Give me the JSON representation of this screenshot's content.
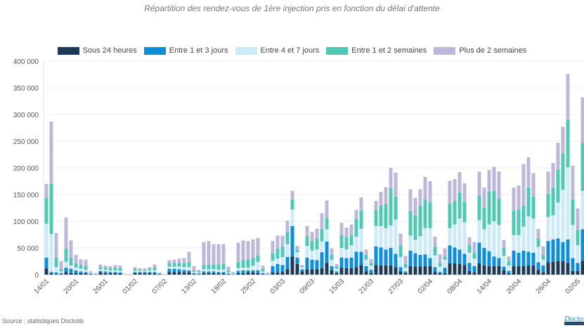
{
  "title": "Répartition des rendez-vous de 1ère injection pris en fonction du délai d'attente",
  "source": "Source : statistiques Doctolib",
  "logo_text": "Doctolib",
  "chart_data": {
    "type": "bar",
    "stacked": true,
    "title": "Répartition des rendez-vous de 1ère injection pris en fonction du délai d'attente",
    "xlabel": "",
    "ylabel": "",
    "ylim": [
      0,
      400000
    ],
    "y_ticks": [
      0,
      50000,
      100000,
      150000,
      200000,
      250000,
      300000,
      350000,
      400000
    ],
    "y_tick_labels": [
      "0",
      "50 000",
      "100 000",
      "150 000",
      "200 000",
      "250 000",
      "300 000",
      "350 000",
      "400 000"
    ],
    "x_tick_labels": [
      "14/01",
      "20/01",
      "26/01",
      "01/02",
      "07/02",
      "13/02",
      "19/02",
      "25/02",
      "03/03",
      "09/03",
      "15/03",
      "21/03",
      "27/03",
      "02/04",
      "08/04",
      "14/04",
      "20/04",
      "26/04",
      "02/05"
    ],
    "grid": true,
    "legend_position": "top",
    "categories": [
      "14/01",
      "15/01",
      "16/01",
      "17/01",
      "18/01",
      "19/01",
      "20/01",
      "21/01",
      "22/01",
      "23/01",
      "24/01",
      "25/01",
      "26/01",
      "27/01",
      "28/01",
      "29/01",
      "30/01",
      "31/01",
      "01/02",
      "02/02",
      "03/02",
      "04/02",
      "05/02",
      "06/02",
      "07/02",
      "08/02",
      "09/02",
      "10/02",
      "11/02",
      "12/02",
      "13/02",
      "14/02",
      "15/02",
      "16/02",
      "17/02",
      "18/02",
      "19/02",
      "20/02",
      "21/02",
      "22/02",
      "23/02",
      "24/02",
      "25/02",
      "26/02",
      "27/02",
      "28/02",
      "01/03",
      "02/03",
      "03/03",
      "04/03",
      "05/03",
      "06/03",
      "07/03",
      "08/03",
      "09/03",
      "10/03",
      "11/03",
      "12/03",
      "13/03",
      "14/03",
      "15/03",
      "16/03",
      "17/03",
      "18/03",
      "19/03",
      "20/03",
      "21/03",
      "22/03",
      "23/03",
      "24/03",
      "25/03",
      "26/03",
      "27/03",
      "28/03",
      "29/03",
      "30/03",
      "31/03",
      "01/04",
      "02/04",
      "03/04",
      "04/04",
      "05/04",
      "06/04",
      "07/04",
      "08/04",
      "09/04",
      "10/04",
      "11/04",
      "12/04",
      "13/04",
      "14/04",
      "15/04",
      "16/04",
      "17/04",
      "18/04",
      "19/04",
      "20/04",
      "21/04",
      "22/04",
      "23/04",
      "24/04",
      "25/04",
      "26/04",
      "27/04",
      "28/04",
      "29/04",
      "30/04",
      "01/05",
      "02/05",
      "03/05"
    ],
    "series": [
      {
        "name": "Sous 24 heures",
        "color": "#1e3a57",
        "values": [
          12000,
          2000,
          1000,
          1000,
          5000,
          3000,
          3000,
          3000,
          2000,
          1000,
          0,
          4000,
          3000,
          3000,
          3000,
          2000,
          0,
          0,
          3000,
          3000,
          3000,
          3000,
          2000,
          1000,
          0,
          5000,
          5000,
          5000,
          4000,
          4000,
          1000,
          1000,
          3000,
          3000,
          3000,
          2000,
          2000,
          1000,
          0,
          3000,
          3000,
          4000,
          4000,
          3000,
          1000,
          0,
          4000,
          4000,
          5000,
          10000,
          34000,
          20000,
          6000,
          10000,
          10000,
          10000,
          12000,
          22000,
          8000,
          3000,
          13000,
          12000,
          12000,
          14000,
          18000,
          6000,
          3000,
          18000,
          17000,
          17000,
          17000,
          14000,
          6000,
          3000,
          16000,
          15000,
          15000,
          16000,
          16000,
          5000,
          2000,
          3000,
          21000,
          21000,
          20000,
          18000,
          7000,
          4000,
          21000,
          17000,
          16000,
          16000,
          16000,
          8000,
          2000,
          16000,
          16000,
          16000,
          17000,
          17000,
          9000,
          4000,
          23000,
          24000,
          25000,
          25000,
          22000,
          7000,
          7000,
          26000
        ]
      },
      {
        "name": "Entre 1 et 3 jours",
        "color": "#0b8fd9",
        "values": [
          20000,
          3000,
          3000,
          2000,
          8000,
          8000,
          5000,
          3000,
          3000,
          1000,
          1000,
          3000,
          3000,
          2000,
          2000,
          2000,
          0,
          0,
          2000,
          2000,
          2000,
          2000,
          3000,
          1000,
          0,
          6000,
          6000,
          5000,
          5000,
          4000,
          2000,
          1000,
          3000,
          3000,
          3000,
          3000,
          3000,
          1000,
          1000,
          4000,
          5000,
          4000,
          4000,
          5000,
          2000,
          1000,
          12000,
          16000,
          13000,
          23000,
          57000,
          12000,
          4000,
          22000,
          18000,
          17000,
          30000,
          40000,
          8000,
          3000,
          19000,
          19000,
          20000,
          29000,
          25000,
          10000,
          6000,
          35000,
          34000,
          30000,
          33000,
          25000,
          8000,
          3000,
          29000,
          25000,
          22000,
          22000,
          15000,
          9000,
          3000,
          10000,
          34000,
          30000,
          27000,
          21000,
          15000,
          12000,
          39000,
          33000,
          28000,
          18000,
          15000,
          7000,
          5000,
          29000,
          25000,
          29000,
          26000,
          24000,
          14000,
          13000,
          40000,
          42000,
          43000,
          36000,
          44000,
          24000,
          15000,
          59000
        ]
      },
      {
        "name": "Entre 4 et 7 jours",
        "color": "#cdeaf8",
        "values": [
          63000,
          71000,
          10000,
          3000,
          11000,
          6000,
          5000,
          5000,
          4000,
          2000,
          1000,
          3000,
          3000,
          3000,
          3000,
          3000,
          1000,
          0,
          2000,
          2000,
          2000,
          3000,
          3000,
          1000,
          0,
          4000,
          4000,
          5000,
          5000,
          6000,
          2000,
          2000,
          4000,
          4000,
          4000,
          4000,
          4000,
          2000,
          1000,
          5000,
          5000,
          5000,
          9000,
          16000,
          3000,
          1000,
          10000,
          10000,
          15000,
          24000,
          31000,
          10000,
          4000,
          22000,
          17000,
          20000,
          20000,
          23000,
          12000,
          5000,
          18000,
          16000,
          23000,
          28000,
          43000,
          12000,
          8000,
          38000,
          40000,
          40000,
          42000,
          64000,
          19000,
          7000,
          28000,
          25000,
          35000,
          49000,
          56000,
          22000,
          10000,
          15000,
          32000,
          43000,
          58000,
          59000,
          19000,
          14000,
          42000,
          35000,
          50000,
          66000,
          62000,
          20000,
          10000,
          29000,
          33000,
          45000,
          66000,
          64000,
          29000,
          11000,
          45000,
          45000,
          67000,
          98000,
          135000,
          62000,
          33000,
          72000
        ]
      },
      {
        "name": "Entre 1 et 2 semaines",
        "color": "#4fc8b4",
        "values": [
          49000,
          94000,
          18000,
          4000,
          25000,
          15000,
          8000,
          7000,
          7000,
          1000,
          0,
          4000,
          4000,
          4000,
          5000,
          5000,
          0,
          0,
          3000,
          2000,
          2000,
          3000,
          5000,
          0,
          0,
          6000,
          7000,
          7000,
          8000,
          9000,
          3000,
          2000,
          8000,
          9000,
          9000,
          10000,
          11000,
          3000,
          1000,
          12000,
          14000,
          15000,
          14000,
          12000,
          5000,
          1000,
          14000,
          18000,
          20000,
          22000,
          19000,
          4000,
          2000,
          18000,
          18000,
          20000,
          23000,
          21000,
          9000,
          4000,
          24000,
          23000,
          19000,
          33000,
          34000,
          9000,
          5000,
          30000,
          38000,
          45000,
          70000,
          43000,
          22000,
          7000,
          46000,
          46000,
          57000,
          54000,
          49000,
          16000,
          7000,
          6000,
          46000,
          44000,
          49000,
          38000,
          14000,
          11000,
          46000,
          40000,
          61000,
          57000,
          49000,
          15000,
          8000,
          46000,
          48000,
          39000,
          54000,
          41000,
          16000,
          9000,
          43000,
          52000,
          62000,
          68000,
          89000,
          48000,
          28000,
          90000
        ]
      },
      {
        "name": "Plus de 2 semaines",
        "color": "#bdb7da",
        "values": [
          26000,
          117000,
          46000,
          15000,
          58000,
          32000,
          16000,
          11000,
          12000,
          1000,
          1000,
          5000,
          4000,
          4000,
          5000,
          5000,
          1000,
          1000,
          4000,
          3000,
          3000,
          3000,
          6000,
          1000,
          1000,
          6000,
          6000,
          8000,
          9000,
          20000,
          8000,
          3000,
          43000,
          44000,
          38000,
          38000,
          37000,
          8000,
          2000,
          36000,
          37000,
          35000,
          35000,
          33000,
          6000,
          1000,
          23000,
          25000,
          20000,
          22000,
          16000,
          8000,
          2000,
          19000,
          17000,
          19000,
          30000,
          33000,
          12000,
          5000,
          23000,
          18000,
          20000,
          17000,
          25000,
          10000,
          7000,
          17000,
          26000,
          32000,
          38000,
          45000,
          22000,
          15000,
          41000,
          33000,
          31000,
          42000,
          39000,
          19000,
          16000,
          15000,
          43000,
          41000,
          38000,
          35000,
          15000,
          20000,
          45000,
          38000,
          41000,
          45000,
          51000,
          15000,
          9000,
          43000,
          45000,
          78000,
          57000,
          44000,
          18000,
          16000,
          42000,
          46000,
          50000,
          50000,
          86000,
          63000,
          41000,
          85000
        ]
      }
    ]
  }
}
